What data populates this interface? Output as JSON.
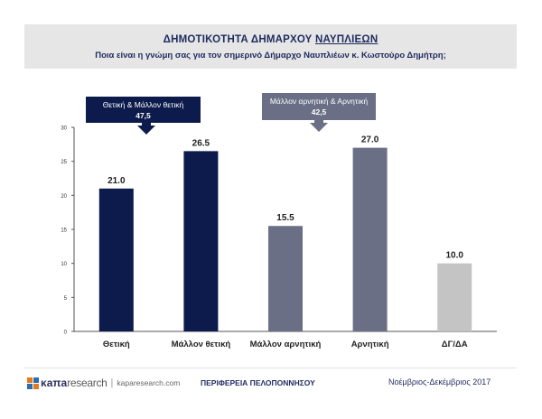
{
  "header": {
    "title_prefix": "ΔΗΜΟΤΙΚΟΤΗΤΑ ΔΗΜΑΡΧΟΥ ",
    "title_place": "ΝΑΥΠΛΙΕΩΝ",
    "subtitle": "Ποια είναι η γνώμη σας για τον σημερινό Δήμαρχο Ναυπλιέων κ. Κωστούρο Δημήτρη;"
  },
  "chart_data": {
    "type": "bar",
    "categories": [
      "Θετική",
      "Μάλλον θετική",
      "Μάλλον αρνητική",
      "Αρνητική",
      "ΔΓ/ΔΑ"
    ],
    "values": [
      21.0,
      26.5,
      15.5,
      27.0,
      10.0
    ],
    "value_labels": [
      "21.0",
      "26.5",
      "15.5",
      "27.0",
      "10.0"
    ],
    "colors": [
      "#0d1b4c",
      "#0d1b4c",
      "#6b6f85",
      "#6b6f85",
      "#c4c4c4"
    ],
    "ylim": [
      0,
      30
    ],
    "yticks": [
      0,
      5,
      10,
      15,
      20,
      25,
      30
    ],
    "xlabel": "",
    "ylabel": "",
    "callouts": [
      {
        "label": "Θετική & Μάλλον θετική",
        "value": "47,5",
        "bg": "#0d1b4c",
        "fg": "#ffffff"
      },
      {
        "label": "Μάλλον αρνητική & Αρνητική",
        "value": "42,5",
        "bg": "#6b6f85",
        "fg": "#ffffff"
      }
    ]
  },
  "footer": {
    "logo_brand": "κaπa",
    "logo_brand2": "research",
    "logo_sep": "|",
    "logo_url": "kaparesearch.com",
    "region": "ΠΕΡΙΦΕΡΕΙΑ ΠΕΛΟΠΟΝΝΗΣΟΥ",
    "date": "Νοέμβριος-Δεκέμβριος 2017"
  }
}
